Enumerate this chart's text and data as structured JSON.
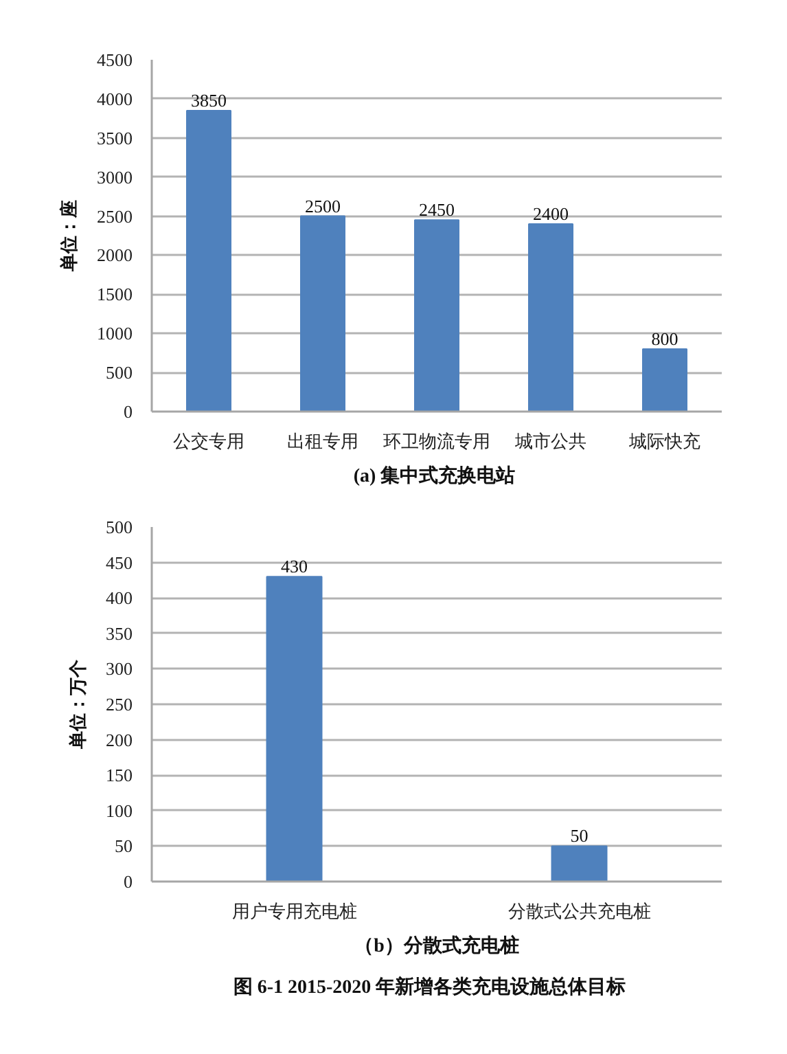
{
  "chart_data": [
    {
      "type": "bar",
      "title": "(a)  集中式充换电站",
      "ylabel": "单位：座",
      "categories": [
        "公交专用",
        "出租专用",
        "环卫物流专用",
        "城市公共",
        "城际快充"
      ],
      "values": [
        3850,
        2500,
        2450,
        2400,
        800
      ],
      "color": "#4f81bd",
      "ylim": [
        0,
        4500
      ],
      "yticks": [
        0,
        500,
        1000,
        1500,
        2000,
        2500,
        3000,
        3500,
        4000,
        4500
      ],
      "grid": "y",
      "data_labels": true
    },
    {
      "type": "bar",
      "title": "（b）分散式充电桩",
      "ylabel": "单位：万个",
      "categories": [
        "用户专用充电桩",
        "分散式公共充电桩"
      ],
      "values": [
        430,
        50
      ],
      "color": "#4f81bd",
      "ylim": [
        0,
        500
      ],
      "yticks": [
        0,
        50,
        100,
        150,
        200,
        250,
        300,
        350,
        400,
        450,
        500
      ],
      "grid": "y",
      "data_labels": true,
      "annotations": [
        "图 6-1    2015-2020 年新增各类充电设施总体目标"
      ]
    }
  ]
}
